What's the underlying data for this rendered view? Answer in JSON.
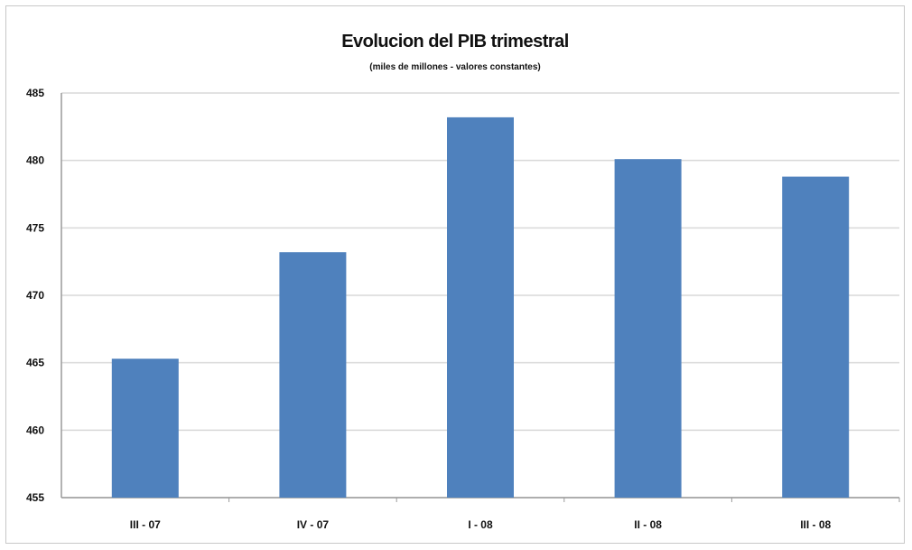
{
  "chart_data": {
    "type": "bar",
    "title": "Evolucion del PIB trimestral",
    "subtitle": "(miles de millones - valores constantes)",
    "categories": [
      "III - 07",
      "IV - 07",
      "I - 08",
      "II - 08",
      "III - 08"
    ],
    "values": [
      465.3,
      473.2,
      483.2,
      480.1,
      478.8
    ],
    "ylim": [
      455,
      485
    ],
    "yticks": [
      455,
      460,
      465,
      470,
      475,
      480,
      485
    ],
    "xlabel": "",
    "ylabel": "",
    "grid": true,
    "legend": "none",
    "colors": {
      "bar": "#4f81bd",
      "grid": "#d9d9d9",
      "axis": "#9a9a9a"
    }
  }
}
